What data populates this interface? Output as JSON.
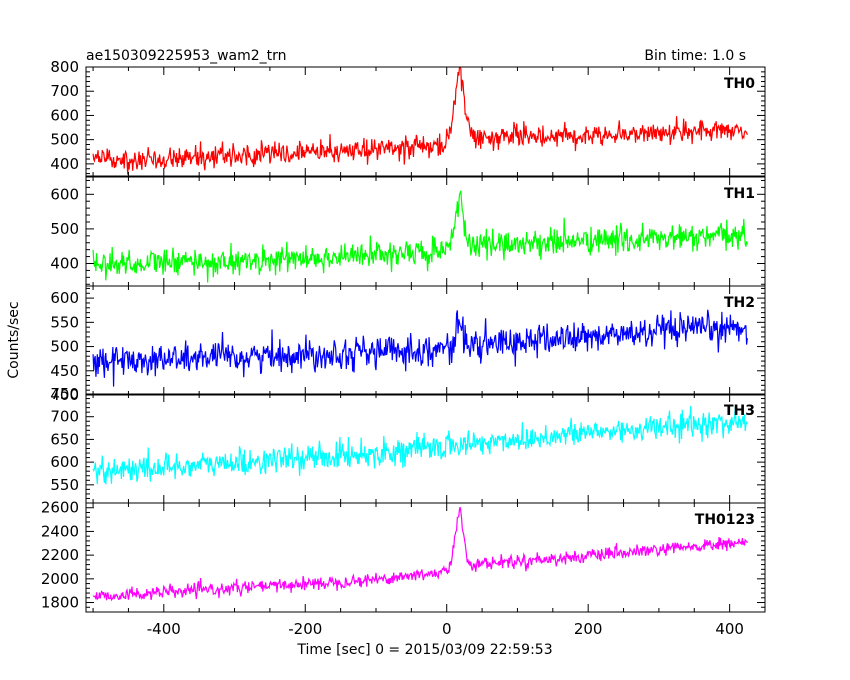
{
  "chart_data": {
    "type": "line",
    "header_left": "ae150309225953_wam2_trn",
    "header_right": "Bin time: 1.0 s",
    "xlabel": "Time [sec] 0 = 2015/03/09 22:59:53",
    "ylabel": "Counts/sec",
    "xlim": [
      -510,
      450
    ],
    "x_ticks": [
      -400,
      -200,
      0,
      200,
      400
    ],
    "x_range_data": [
      -500,
      425
    ],
    "bin_time_s": 1.0,
    "panels": [
      {
        "name": "TH0",
        "color": "#ff0000",
        "ylim": [
          350,
          800
        ],
        "y_ticks": [
          400,
          500,
          600,
          700,
          800
        ],
        "trend": {
          "x": [
            -500,
            -300,
            -100,
            0,
            50,
            200,
            425
          ],
          "y": [
            415,
            435,
            460,
            475,
            510,
            520,
            540
          ]
        },
        "noise": 38,
        "peak": {
          "x": 18,
          "height": 300,
          "width": 7
        }
      },
      {
        "name": "TH1",
        "color": "#00ff00",
        "ylim": [
          335,
          650
        ],
        "y_ticks": [
          400,
          500,
          600
        ],
        "trend": {
          "x": [
            -500,
            -300,
            -100,
            0,
            50,
            200,
            425
          ],
          "y": [
            400,
            405,
            425,
            435,
            455,
            465,
            480
          ]
        },
        "noise": 33,
        "peak": {
          "x": 18,
          "height": 170,
          "width": 5
        }
      },
      {
        "name": "TH2",
        "color": "#0000ff",
        "ylim": [
          400,
          625
        ],
        "y_ticks": [
          400,
          450,
          500,
          550,
          600
        ],
        "trend": {
          "x": [
            -500,
            -300,
            -100,
            0,
            100,
            250,
            425
          ],
          "y": [
            470,
            478,
            490,
            495,
            510,
            525,
            540
          ]
        },
        "noise": 27,
        "peak": {
          "x": 18,
          "height": 55,
          "width": 5
        }
      },
      {
        "name": "TH3",
        "color": "#00ffff",
        "ylim": [
          510,
          750
        ],
        "y_ticks": [
          550,
          600,
          650,
          700,
          750
        ],
        "trend": {
          "x": [
            -500,
            -300,
            -100,
            0,
            200,
            425
          ],
          "y": [
            580,
            598,
            620,
            635,
            665,
            690
          ]
        },
        "noise": 24,
        "peak": {
          "x": 18,
          "height": 0,
          "width": 5
        }
      },
      {
        "name": "TH0123",
        "color": "#ff00ff",
        "ylim": [
          1720,
          2640
        ],
        "y_ticks": [
          1800,
          2000,
          2200,
          2400,
          2600
        ],
        "trend": {
          "x": [
            -500,
            -300,
            -100,
            0,
            50,
            200,
            425
          ],
          "y": [
            1850,
            1920,
            1995,
            2060,
            2130,
            2190,
            2310
          ]
        },
        "noise": 45,
        "peak": {
          "x": 18,
          "height": 480,
          "width": 6
        }
      }
    ]
  }
}
